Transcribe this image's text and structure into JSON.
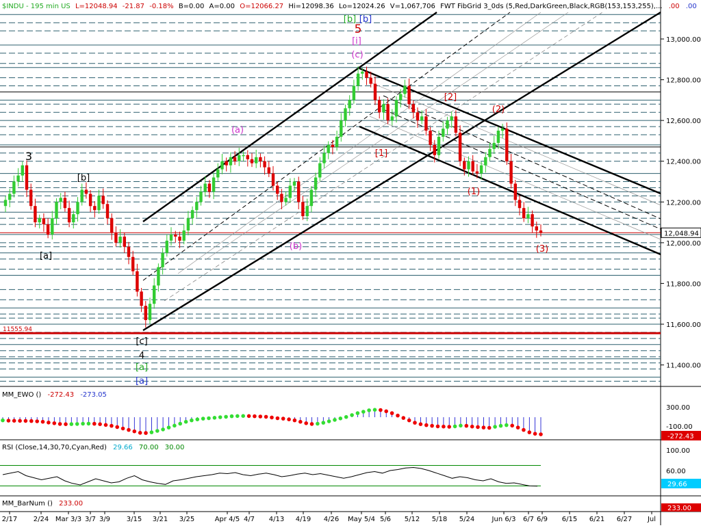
{
  "header": {
    "symbol": "$INDU - 195 min  US",
    "last": "L=12048.94",
    "change": "-21.87",
    "change_pct": "-0.18%",
    "bid": "B=0.00",
    "ask": "A=0.00",
    "open": "O=12066.27",
    "high": "Hi=12098.36",
    "low": "Lo=12024.26",
    "volume": "V=1,067,706",
    "study": "FWT FibGrid 3_0ds (5,Red,DarkGreen,Black,RGB(153,153,255),...",
    "study_v1": ".00",
    "study_v2": ".00"
  },
  "colors": {
    "up": "#33cc33",
    "down": "#dd0000",
    "fib_line": "#2b5f6e",
    "channel": "#000000",
    "ewo_dot_green": "#33dd33",
    "ewo_dot_red": "#ee0000",
    "ewo_hist": "#0000cc",
    "rsi_line": "#000000",
    "rsi_70": "#008800",
    "rsi_30": "#008800",
    "price_marker": "#cc0000",
    "wave_magenta": "#cc33cc",
    "wave_red": "#cc0000",
    "wave_green": "#22aa22",
    "wave_blue": "#2233cc"
  },
  "price_axis": {
    "labels": [
      "13,000.00",
      "12,800.00",
      "12,600.00",
      "12,400.00",
      "12,200.00",
      "12,000.00",
      "11,800.00",
      "11,600.00",
      "11,400.00"
    ],
    "current": "12,048.94",
    "low_line_label": "11555.94"
  },
  "date_axis": [
    "2/17",
    "2/24",
    "Mar 3/3",
    "3/7",
    "3/9",
    "3/15",
    "3/21",
    "3/25",
    "Apr 4/5",
    "4/7",
    "4/13",
    "4/19",
    "4/26",
    "May 5/4",
    "5/6",
    "5/12",
    "5/18",
    "5/24",
    "Jun 6/3",
    "6/7",
    "6/9",
    "6/15",
    "6/21",
    "6/27",
    "Jul"
  ],
  "wave_labels": [
    {
      "text": "3",
      "color": "#000000"
    },
    {
      "text": "[b]",
      "color": "#000000"
    },
    {
      "text": "[a]",
      "color": "#000000"
    },
    {
      "text": "(a)",
      "color": "#cc33cc"
    },
    {
      "text": "(b)",
      "color": "#cc33cc"
    },
    {
      "text": "(c)",
      "color": "#cc33cc"
    },
    {
      "text": "[i]",
      "color": "#cc33cc"
    },
    {
      "text": "5",
      "color": "#cc0000"
    },
    {
      "text": "[b]",
      "color": "#22aa22"
    },
    {
      "text": "[b]",
      "color": "#2233cc"
    },
    {
      "text": "[1]",
      "color": "#cc0000"
    },
    {
      "text": "[2]",
      "color": "#cc0000"
    },
    {
      "text": "(1)",
      "color": "#cc0000"
    },
    {
      "text": "(2)",
      "color": "#cc0000"
    },
    {
      "text": "(3)",
      "color": "#cc0000"
    },
    {
      "text": "[c]",
      "color": "#000000"
    },
    {
      "text": "4",
      "color": "#000000"
    },
    {
      "text": "[a]",
      "color": "#22aa22"
    },
    {
      "text": "[a]",
      "color": "#2233cc"
    }
  ],
  "ewo": {
    "title": "MM_EWO ()",
    "v1": "-272.43",
    "v2": "-273.05",
    "axis": [
      "300.00",
      "-100.00"
    ],
    "current": "-272.43"
  },
  "rsi": {
    "title": "RSI (Close,14,30,70,Cyan,Red)",
    "v1": "29.66",
    "v2": "70.00",
    "v3": "30.00",
    "axis": [
      "100.00",
      "60.00"
    ],
    "current": "29.66"
  },
  "barnum": {
    "title": "MM_BarNum ()",
    "value": "233.00",
    "current": "233.00"
  },
  "chart_data": {
    "type": "candlestick",
    "title": "$INDU - 195 min",
    "ylim": [
      11300,
      13150
    ],
    "price_ticks": [
      13000,
      12800,
      12600,
      12400,
      12200,
      12000,
      11800,
      11600,
      11400
    ],
    "last_price": 12048.94,
    "low_line": 11555.94,
    "fib_levels": [
      13120,
      13080,
      13040,
      12970,
      12930,
      12880,
      12860,
      12810,
      12770,
      12700,
      12680,
      12640,
      12600,
      12570,
      12530,
      12480,
      12440,
      12400,
      12340,
      12300,
      12270,
      12250,
      12230,
      12200,
      12150,
      12120,
      12090,
      12040,
      12000,
      11980,
      11950,
      11920,
      11870,
      11840,
      11770,
      11720,
      11680,
      11650,
      11630,
      11600,
      11560,
      11530,
      11500,
      11470,
      11440,
      11430,
      11410,
      11380,
      11340,
      11320
    ],
    "close_series": [
      12210,
      12240,
      12300,
      12330,
      12380,
      12260,
      12180,
      12100,
      12120,
      12090,
      12040,
      12120,
      12200,
      12220,
      12170,
      12100,
      12140,
      12200,
      12260,
      12240,
      12180,
      12160,
      12230,
      12190,
      12120,
      12050,
      12000,
      12030,
      11980,
      11930,
      11860,
      11760,
      11690,
      11620,
      11700,
      11790,
      11880,
      11950,
      12010,
      12040,
      12030,
      12010,
      12060,
      12120,
      12160,
      12200,
      12250,
      12290,
      12250,
      12320,
      12360,
      12400,
      12380,
      12420,
      12400,
      12430,
      12430,
      12410,
      12390,
      12420,
      12400,
      12370,
      12340,
      12280,
      12240,
      12200,
      12220,
      12280,
      12300,
      12200,
      12130,
      12180,
      12260,
      12320,
      12390,
      12440,
      12480,
      12470,
      12520,
      12600,
      12660,
      12700,
      12770,
      12830,
      12840,
      12810,
      12780,
      12700,
      12640,
      12680,
      12600,
      12620,
      12700,
      12730,
      12770,
      12680,
      12640,
      12600,
      12620,
      12550,
      12480,
      12430,
      12520,
      12560,
      12600,
      12620,
      12540,
      12400,
      12360,
      12400,
      12350,
      12340,
      12380,
      12420,
      12460,
      12490,
      12550,
      12560,
      12400,
      12290,
      12210,
      12170,
      12120,
      12140,
      12080,
      12060,
      12049
    ],
    "ewo_series": [
      20,
      15,
      12,
      10,
      8,
      5,
      0,
      -10,
      -25,
      -40,
      -55,
      -60,
      -58,
      -55,
      -50,
      -48,
      -52,
      -60,
      -75,
      -95,
      -120,
      -150,
      -180,
      -210,
      -240,
      -245,
      -230,
      -200,
      -170,
      -130,
      -90,
      -50,
      -10,
      20,
      40,
      55,
      65,
      75,
      85,
      95,
      105,
      110,
      112,
      110,
      105,
      100,
      95,
      80,
      65,
      55,
      40,
      20,
      -10,
      -40,
      -55,
      -50,
      -30,
      0,
      30,
      60,
      90,
      130,
      170,
      200,
      230,
      240,
      235,
      210,
      170,
      120,
      70,
      20,
      -30,
      -60,
      -80,
      -95,
      -105,
      -110,
      -115,
      -105,
      -90,
      -95,
      -110,
      -120,
      -130,
      -135,
      -115,
      -95,
      -80,
      -90,
      -130,
      -180,
      -230,
      -260,
      -272
    ],
    "rsi_series": [
      52,
      55,
      58,
      50,
      46,
      42,
      45,
      48,
      40,
      35,
      32,
      38,
      44,
      40,
      36,
      38,
      45,
      50,
      42,
      38,
      35,
      33,
      40,
      42,
      45,
      48,
      50,
      52,
      55,
      54,
      56,
      52,
      50,
      53,
      55,
      52,
      48,
      50,
      53,
      55,
      52,
      54,
      51,
      48,
      45,
      48,
      52,
      56,
      58,
      55,
      60,
      62,
      65,
      66,
      64,
      60,
      55,
      50,
      45,
      48,
      46,
      42,
      40,
      44,
      38,
      35,
      36,
      33,
      30,
      29.66
    ],
    "rsi_levels": [
      70,
      30
    ],
    "barnum_value": 233
  }
}
